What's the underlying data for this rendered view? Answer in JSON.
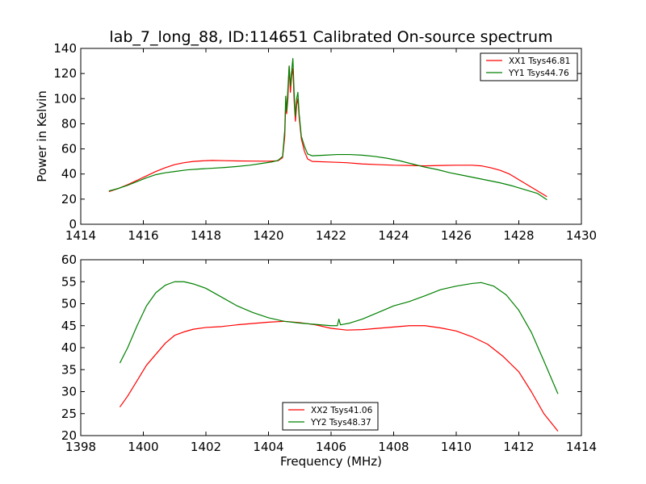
{
  "chart_data": [
    {
      "type": "line",
      "title": "lab_7_long_88, ID:114651 Calibrated On-source spectrum",
      "xlabel": "",
      "ylabel": "Power in Kelvin",
      "xlim": [
        1414,
        1430
      ],
      "ylim": [
        0,
        140
      ],
      "xticks": [
        1414,
        1416,
        1418,
        1420,
        1422,
        1424,
        1426,
        1428,
        1430
      ],
      "yticks": [
        0,
        20,
        40,
        60,
        80,
        100,
        120,
        140
      ],
      "grid": false,
      "legend_position": "top-right",
      "series": [
        {
          "name": "XX1 Tsys46.81",
          "color": "#ff0000",
          "points": [
            [
              1414.9,
              26
            ],
            [
              1415.2,
              28.5
            ],
            [
              1415.5,
              31.5
            ],
            [
              1415.8,
              35
            ],
            [
              1416.1,
              38.5
            ],
            [
              1416.4,
              42
            ],
            [
              1416.7,
              45
            ],
            [
              1417.0,
              47.5
            ],
            [
              1417.3,
              49
            ],
            [
              1417.6,
              50
            ],
            [
              1417.9,
              50.5
            ],
            [
              1418.2,
              50.8
            ],
            [
              1418.6,
              50.6
            ],
            [
              1419.0,
              50.4
            ],
            [
              1419.5,
              50.3
            ],
            [
              1420.0,
              50.2
            ],
            [
              1420.3,
              50.5
            ],
            [
              1420.45,
              53
            ],
            [
              1420.52,
              70
            ],
            [
              1420.55,
              95
            ],
            [
              1420.58,
              88
            ],
            [
              1420.62,
              100
            ],
            [
              1420.66,
              126
            ],
            [
              1420.7,
              105
            ],
            [
              1420.74,
              118
            ],
            [
              1420.78,
              124
            ],
            [
              1420.82,
              98
            ],
            [
              1420.86,
              82
            ],
            [
              1420.9,
              95
            ],
            [
              1420.94,
              100
            ],
            [
              1420.98,
              85
            ],
            [
              1421.05,
              68
            ],
            [
              1421.15,
              58
            ],
            [
              1421.25,
              52
            ],
            [
              1421.4,
              50
            ],
            [
              1422.0,
              49.5
            ],
            [
              1422.5,
              49
            ],
            [
              1423.0,
              48
            ],
            [
              1423.5,
              47.5
            ],
            [
              1424.0,
              47
            ],
            [
              1424.5,
              46.8
            ],
            [
              1425.0,
              46.5
            ],
            [
              1425.5,
              46.8
            ],
            [
              1426.0,
              47
            ],
            [
              1426.5,
              47
            ],
            [
              1426.8,
              46.5
            ],
            [
              1427.1,
              45
            ],
            [
              1427.4,
              43
            ],
            [
              1427.7,
              40
            ],
            [
              1428.0,
              35.5
            ],
            [
              1428.3,
              31
            ],
            [
              1428.6,
              26.5
            ],
            [
              1428.9,
              22
            ]
          ]
        },
        {
          "name": "YY1 Tsys44.76",
          "color": "#008000",
          "points": [
            [
              1414.9,
              26.5
            ],
            [
              1415.2,
              28.5
            ],
            [
              1415.5,
              31
            ],
            [
              1415.8,
              34
            ],
            [
              1416.1,
              37
            ],
            [
              1416.4,
              39.5
            ],
            [
              1416.7,
              41
            ],
            [
              1417.0,
              42
            ],
            [
              1417.4,
              43.3
            ],
            [
              1417.8,
              44
            ],
            [
              1418.2,
              44.6
            ],
            [
              1418.6,
              45.2
            ],
            [
              1419.0,
              46
            ],
            [
              1419.4,
              47
            ],
            [
              1419.8,
              48.5
            ],
            [
              1420.1,
              49.6
            ],
            [
              1420.3,
              50.8
            ],
            [
              1420.45,
              54
            ],
            [
              1420.52,
              75
            ],
            [
              1420.55,
              102
            ],
            [
              1420.58,
              90
            ],
            [
              1420.62,
              108
            ],
            [
              1420.66,
              126
            ],
            [
              1420.7,
              110
            ],
            [
              1420.74,
              122
            ],
            [
              1420.78,
              132
            ],
            [
              1420.82,
              105
            ],
            [
              1420.86,
              86
            ],
            [
              1420.9,
              100
            ],
            [
              1420.94,
              105
            ],
            [
              1420.98,
              88
            ],
            [
              1421.05,
              70
            ],
            [
              1421.15,
              62
            ],
            [
              1421.25,
              56
            ],
            [
              1421.4,
              54.5
            ],
            [
              1421.8,
              55
            ],
            [
              1422.2,
              55.5
            ],
            [
              1422.6,
              55.5
            ],
            [
              1423.0,
              55
            ],
            [
              1423.4,
              54
            ],
            [
              1423.8,
              52.5
            ],
            [
              1424.2,
              50.5
            ],
            [
              1424.6,
              48
            ],
            [
              1425.0,
              45.5
            ],
            [
              1425.4,
              43.5
            ],
            [
              1425.8,
              41
            ],
            [
              1426.2,
              39
            ],
            [
              1426.6,
              37
            ],
            [
              1427.0,
              35
            ],
            [
              1427.4,
              33
            ],
            [
              1427.8,
              30.5
            ],
            [
              1428.2,
              27.5
            ],
            [
              1428.6,
              24.5
            ],
            [
              1428.9,
              19.5
            ]
          ]
        }
      ]
    },
    {
      "type": "line",
      "title": "",
      "xlabel": "Frequency (MHz)",
      "ylabel": "",
      "xlim": [
        1398,
        1414
      ],
      "ylim": [
        20,
        60
      ],
      "xticks": [
        1398,
        1400,
        1402,
        1404,
        1406,
        1408,
        1410,
        1412,
        1414
      ],
      "yticks": [
        20,
        25,
        30,
        35,
        40,
        45,
        50,
        55,
        60
      ],
      "grid": false,
      "legend_position": "bottom-center",
      "series": [
        {
          "name": "XX2 Tsys41.06",
          "color": "#ff0000",
          "points": [
            [
              1399.25,
              26.5
            ],
            [
              1399.5,
              29
            ],
            [
              1399.8,
              32.5
            ],
            [
              1400.1,
              36
            ],
            [
              1400.4,
              38.5
            ],
            [
              1400.7,
              41
            ],
            [
              1401.0,
              42.8
            ],
            [
              1401.3,
              43.6
            ],
            [
              1401.6,
              44.2
            ],
            [
              1402.0,
              44.6
            ],
            [
              1402.5,
              44.8
            ],
            [
              1403.0,
              45.2
            ],
            [
              1403.5,
              45.5
            ],
            [
              1404.0,
              45.8
            ],
            [
              1404.5,
              46
            ],
            [
              1405.0,
              45.7
            ],
            [
              1405.5,
              45.2
            ],
            [
              1406.0,
              44.4
            ],
            [
              1406.5,
              44
            ],
            [
              1407.0,
              44.1
            ],
            [
              1407.5,
              44.4
            ],
            [
              1408.0,
              44.7
            ],
            [
              1408.5,
              45
            ],
            [
              1409.0,
              45
            ],
            [
              1409.5,
              44.5
            ],
            [
              1410.0,
              43.8
            ],
            [
              1410.5,
              42.5
            ],
            [
              1411.0,
              40.8
            ],
            [
              1411.5,
              38
            ],
            [
              1412.0,
              34.5
            ],
            [
              1412.4,
              30
            ],
            [
              1412.8,
              25
            ],
            [
              1413.25,
              21
            ]
          ]
        },
        {
          "name": "YY2 Tsys48.37",
          "color": "#008000",
          "points": [
            [
              1399.25,
              36.5
            ],
            [
              1399.5,
              40
            ],
            [
              1399.8,
              45
            ],
            [
              1400.1,
              49.5
            ],
            [
              1400.4,
              52.5
            ],
            [
              1400.7,
              54.2
            ],
            [
              1401.0,
              55
            ],
            [
              1401.3,
              55
            ],
            [
              1401.6,
              54.5
            ],
            [
              1402.0,
              53.5
            ],
            [
              1402.5,
              51.5
            ],
            [
              1403.0,
              49.5
            ],
            [
              1403.5,
              48
            ],
            [
              1404.0,
              46.8
            ],
            [
              1404.5,
              46
            ],
            [
              1405.0,
              45.6
            ],
            [
              1405.5,
              45.3
            ],
            [
              1406.0,
              45
            ],
            [
              1406.2,
              45
            ],
            [
              1406.25,
              46.5
            ],
            [
              1406.3,
              45.2
            ],
            [
              1406.6,
              45.6
            ],
            [
              1407.0,
              46.5
            ],
            [
              1407.5,
              48
            ],
            [
              1408.0,
              49.5
            ],
            [
              1408.5,
              50.5
            ],
            [
              1409.0,
              51.8
            ],
            [
              1409.5,
              53.2
            ],
            [
              1410.0,
              54
            ],
            [
              1410.5,
              54.6
            ],
            [
              1410.8,
              54.8
            ],
            [
              1411.2,
              54
            ],
            [
              1411.6,
              52
            ],
            [
              1412.0,
              48.5
            ],
            [
              1412.4,
              43.5
            ],
            [
              1412.8,
              37
            ],
            [
              1413.25,
              29.5
            ]
          ]
        }
      ]
    }
  ]
}
